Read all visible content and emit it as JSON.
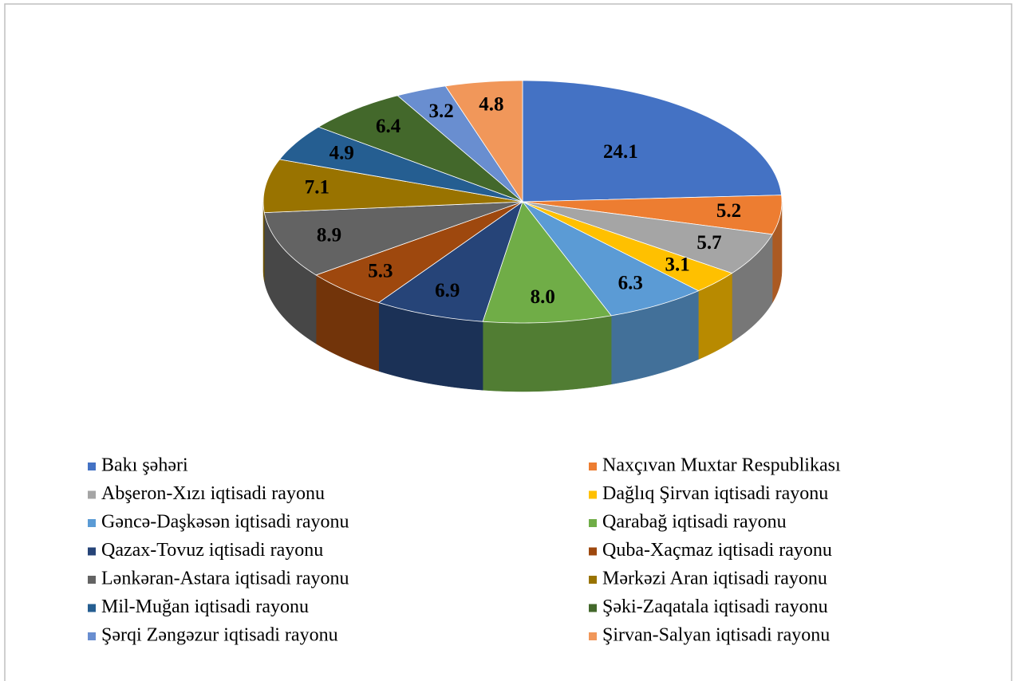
{
  "chart_data": {
    "type": "pie",
    "categories": [
      "Bakı şəhəri",
      "Naxçıvan Muxtar Respublikası",
      "Abşeron-Xızı iqtisadi rayonu",
      "Dağlıq Şirvan iqtisadi rayonu",
      "Gəncə-Daşkəsən iqtisadi rayonu",
      "Qarabağ iqtisadi rayonu",
      "Qazax-Tovuz iqtisadi rayonu",
      "Quba-Xaçmaz iqtisadi rayonu",
      "Lənkəran-Astara iqtisadi rayonu",
      "Mərkəzi Aran iqtisadi rayonu",
      "Mil-Muğan iqtisadi rayonu",
      "Şəki-Zaqatala iqtisadi rayonu",
      "Şərqi Zəngəzur iqtisadi rayonu",
      "Şirvan-Salyan iqtisadi rayonu"
    ],
    "values": [
      24.1,
      5.2,
      5.7,
      3.1,
      6.3,
      8.0,
      6.9,
      5.3,
      8.9,
      7.1,
      4.9,
      6.4,
      3.2,
      4.8
    ],
    "value_labels": [
      "24.1",
      "5.2",
      "5.7",
      "3.1",
      "6.3",
      "8.0",
      "6.9",
      "5.3",
      "8.9",
      "7.1",
      "4.9",
      "6.4",
      "3.2",
      "4.8"
    ],
    "colors": [
      "#4472c4",
      "#ed7d31",
      "#a5a5a5",
      "#ffc000",
      "#5b9bd5",
      "#70ad47",
      "#264478",
      "#9e480e",
      "#636363",
      "#997300",
      "#255e91",
      "#43682b",
      "#698ed0",
      "#f1975a"
    ]
  }
}
